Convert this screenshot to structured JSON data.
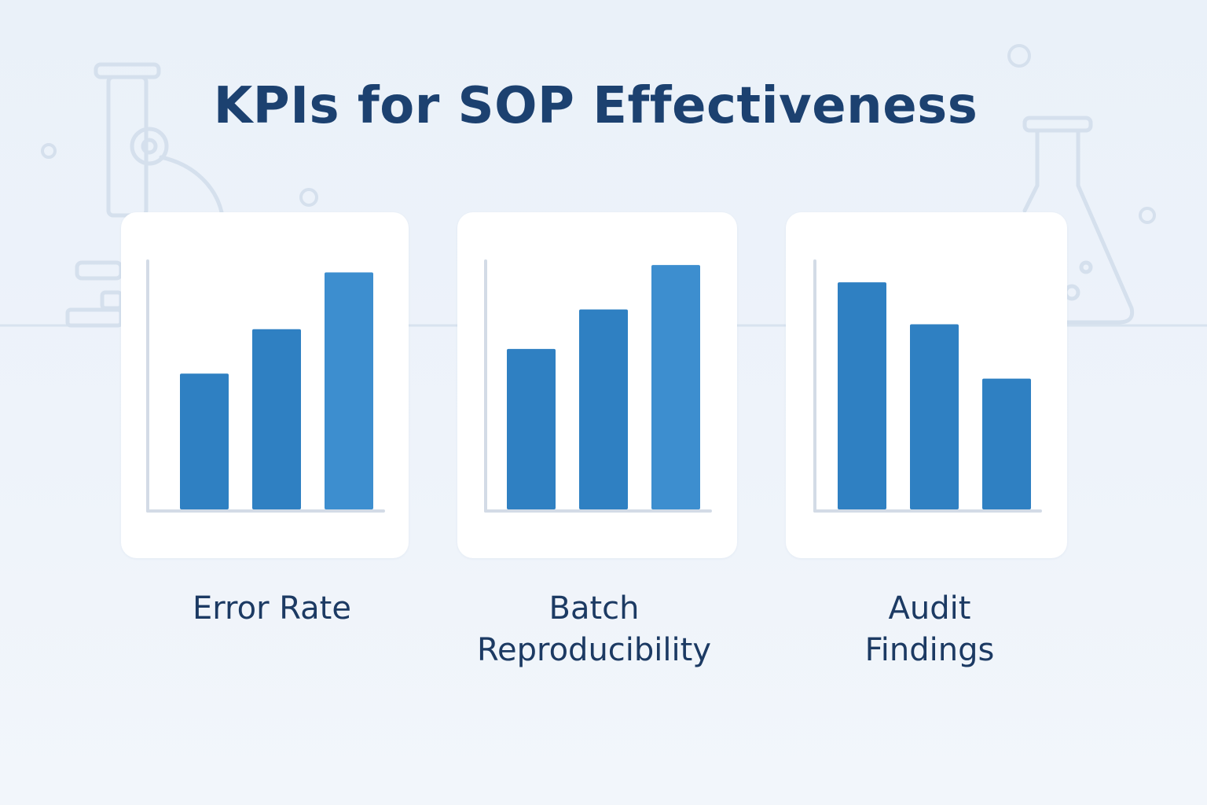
{
  "title": "KPIs for SOP Effectiveness",
  "colors": {
    "title": "#1c4170",
    "label": "#1c3a63",
    "bar": "#2f80c2",
    "bar_highlight": "#3d8ecf",
    "axis": "#d3dbe6",
    "card": "#ffffff",
    "background": "#eaf1f9",
    "decor": "#d2deec"
  },
  "background_icons": [
    "microscope-icon",
    "flask-icon"
  ],
  "chart_data": [
    {
      "type": "bar",
      "title": "",
      "label": "Error Rate",
      "categories": [
        "",
        "",
        ""
      ],
      "values": [
        55,
        73,
        96
      ],
      "ylim": [
        0,
        100
      ],
      "xlabel": "",
      "ylabel": "",
      "grid": false,
      "legend": "none"
    },
    {
      "type": "bar",
      "title": "",
      "label": "Batch Reproducibility",
      "label_lines": [
        "Batch",
        "Reproducibility"
      ],
      "categories": [
        "",
        "",
        ""
      ],
      "values": [
        65,
        81,
        99
      ],
      "ylim": [
        0,
        100
      ],
      "xlabel": "",
      "ylabel": "",
      "grid": false,
      "legend": "none"
    },
    {
      "type": "bar",
      "title": "",
      "label": "Audit Findings",
      "label_lines": [
        "Audit",
        "Findings"
      ],
      "categories": [
        "",
        "",
        ""
      ],
      "values": [
        92,
        75,
        53
      ],
      "ylim": [
        0,
        100
      ],
      "xlabel": "",
      "ylabel": "",
      "grid": false,
      "legend": "none"
    }
  ]
}
